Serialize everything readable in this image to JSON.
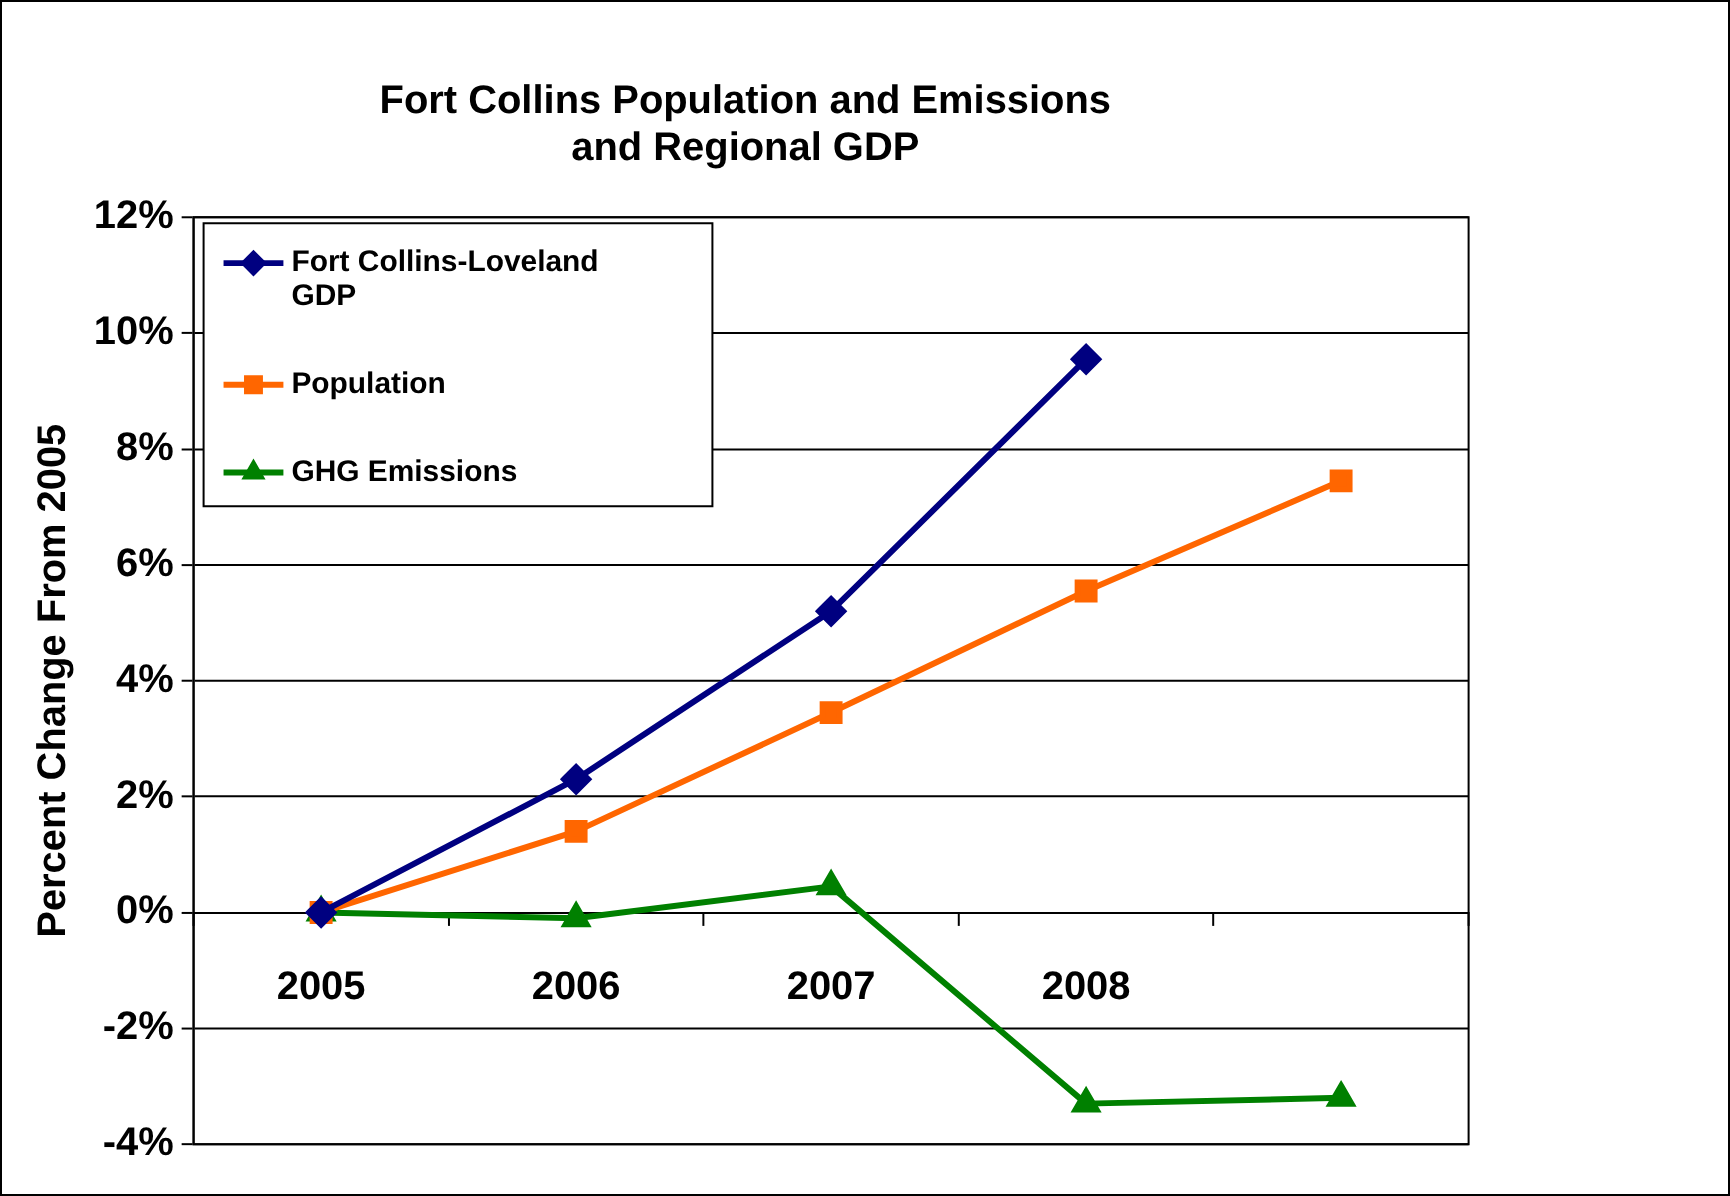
{
  "chart_data": {
    "type": "line",
    "title": "Fort Collins Population and Emissions\nand Regional GDP",
    "ylabel": "Percent Change From 2005",
    "categories": [
      "2005",
      "2006",
      "2007",
      "2008",
      null
    ],
    "series": [
      {
        "name": "Fort Collins-Loveland GDP",
        "color": "#000080",
        "marker": "diamond",
        "values": [
          0,
          2.3,
          5.2,
          9.55,
          null
        ]
      },
      {
        "name": "Population",
        "color": "#ff6600",
        "marker": "square",
        "values": [
          0,
          1.4,
          3.45,
          5.55,
          7.45
        ]
      },
      {
        "name": "GHG Emissions",
        "color": "#008000",
        "marker": "triangle",
        "values": [
          0,
          -0.1,
          0.45,
          -3.3,
          -3.2
        ]
      }
    ],
    "ylim": [
      -4,
      12
    ],
    "yticks": [
      {
        "value": -4,
        "label": "-4%"
      },
      {
        "value": -2,
        "label": "-2%"
      },
      {
        "value": 0,
        "label": "0%"
      },
      {
        "value": 2,
        "label": "2%"
      },
      {
        "value": 4,
        "label": "4%"
      },
      {
        "value": 6,
        "label": "6%"
      },
      {
        "value": 8,
        "label": "8%"
      },
      {
        "value": 10,
        "label": "10%"
      },
      {
        "value": 12,
        "label": "12%"
      }
    ],
    "grid": "y",
    "legend": "top left"
  }
}
